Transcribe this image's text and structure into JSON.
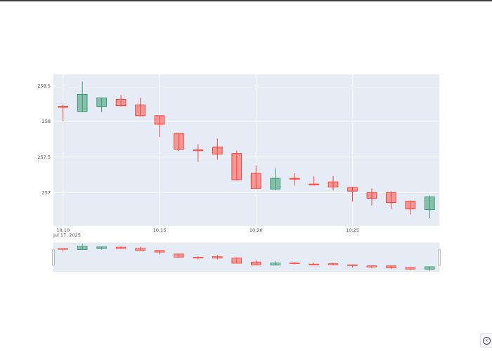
{
  "chart_data": {
    "type": "candlestick",
    "date_label": "Jul 17, 2025",
    "x_tick_labels": [
      "10:10",
      "10:15",
      "10:20",
      "10:25"
    ],
    "x_tick_minutes": [
      0,
      5,
      10,
      15
    ],
    "x_range_minutes": [
      -0.5,
      19.5
    ],
    "y_tick_labels": [
      "257",
      "257.5",
      "258",
      "258.5"
    ],
    "y_tick_values": [
      257,
      257.5,
      258,
      258.5
    ],
    "ylim": [
      256.53,
      258.66
    ],
    "increasing_color": "#3d9970",
    "decreasing_color": "#ff4136",
    "grid": true,
    "rangeslider": true,
    "candles": [
      {
        "t": 0,
        "open": 258.21,
        "high": 258.24,
        "low": 258.0,
        "close": 258.2
      },
      {
        "t": 1,
        "open": 258.14,
        "high": 258.56,
        "low": 258.13,
        "close": 258.38
      },
      {
        "t": 2,
        "open": 258.21,
        "high": 258.33,
        "low": 258.13,
        "close": 258.33
      },
      {
        "t": 3,
        "open": 258.31,
        "high": 258.37,
        "low": 258.21,
        "close": 258.22
      },
      {
        "t": 4,
        "open": 258.23,
        "high": 258.33,
        "low": 258.07,
        "close": 258.08
      },
      {
        "t": 5,
        "open": 258.08,
        "high": 258.08,
        "low": 257.78,
        "close": 257.96
      },
      {
        "t": 6,
        "open": 257.83,
        "high": 257.83,
        "low": 257.58,
        "close": 257.61
      },
      {
        "t": 7,
        "open": 257.6,
        "high": 257.68,
        "low": 257.43,
        "close": 257.59
      },
      {
        "t": 8,
        "open": 257.64,
        "high": 257.76,
        "low": 257.46,
        "close": 257.54
      },
      {
        "t": 9,
        "open": 257.55,
        "high": 257.59,
        "low": 257.17,
        "close": 257.18
      },
      {
        "t": 10,
        "open": 257.27,
        "high": 257.38,
        "low": 257.05,
        "close": 257.06
      },
      {
        "t": 11,
        "open": 257.05,
        "high": 257.34,
        "low": 257.03,
        "close": 257.2
      },
      {
        "t": 12,
        "open": 257.2,
        "high": 257.27,
        "low": 257.1,
        "close": 257.19
      },
      {
        "t": 13,
        "open": 257.12,
        "high": 257.23,
        "low": 257.1,
        "close": 257.11
      },
      {
        "t": 14,
        "open": 257.15,
        "high": 257.23,
        "low": 257.03,
        "close": 257.08
      },
      {
        "t": 15,
        "open": 257.07,
        "high": 257.08,
        "low": 256.87,
        "close": 257.02
      },
      {
        "t": 16,
        "open": 257.0,
        "high": 257.06,
        "low": 256.82,
        "close": 256.92
      },
      {
        "t": 17,
        "open": 257.0,
        "high": 257.02,
        "low": 256.77,
        "close": 256.86
      },
      {
        "t": 18,
        "open": 256.88,
        "high": 256.89,
        "low": 256.69,
        "close": 256.77
      },
      {
        "t": 19,
        "open": 256.76,
        "high": 256.96,
        "low": 256.64,
        "close": 256.94
      }
    ]
  }
}
